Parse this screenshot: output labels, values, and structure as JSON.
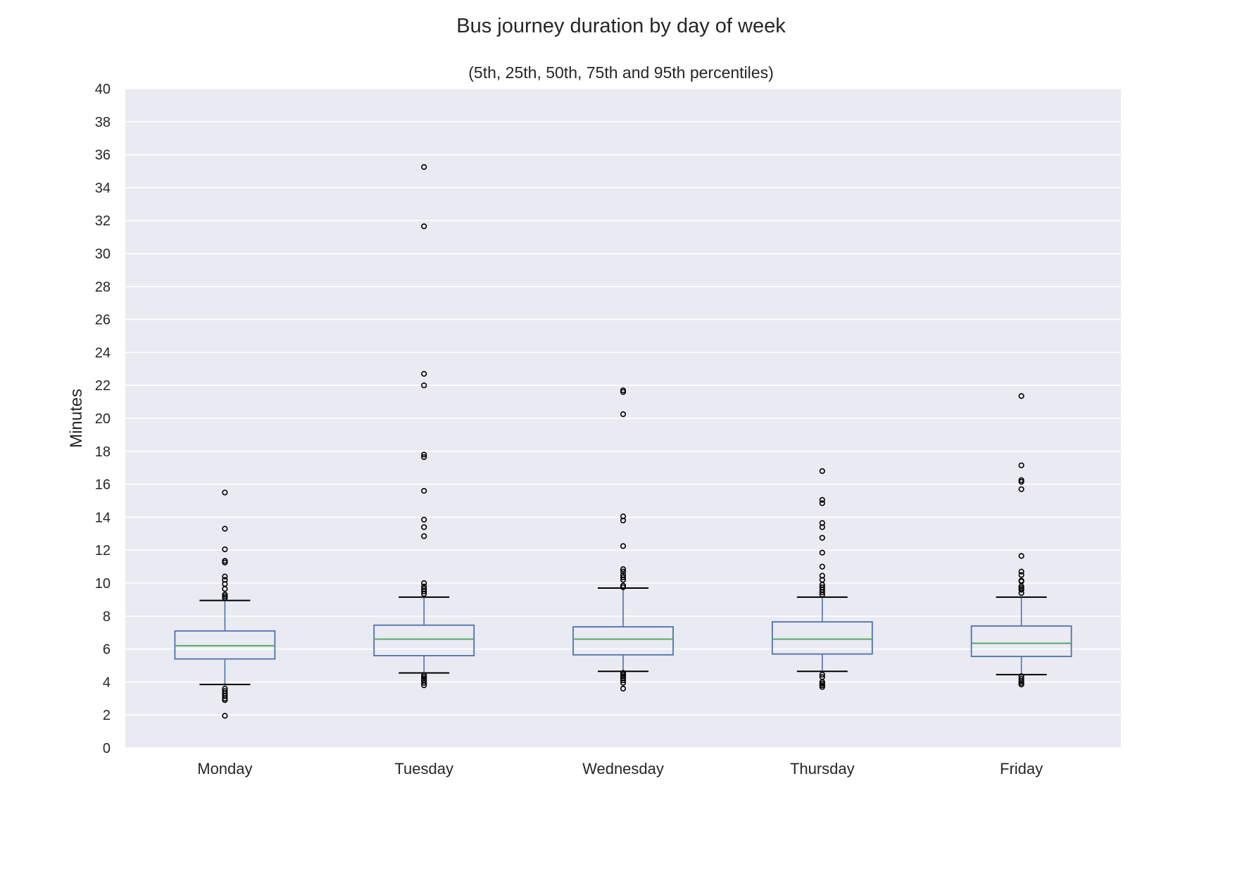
{
  "chart_data": {
    "type": "box",
    "title": "Bus journey duration by day of week",
    "subtitle": "(5th, 25th, 50th, 75th and 95th percentiles)",
    "xlabel": "",
    "ylabel": "Minutes",
    "ylim": [
      0,
      40
    ],
    "yticks": [
      0,
      2,
      4,
      6,
      8,
      10,
      12,
      14,
      16,
      18,
      20,
      22,
      24,
      26,
      28,
      30,
      32,
      34,
      36,
      38,
      40
    ],
    "grid": true,
    "legend": "none",
    "categories": [
      "Monday",
      "Tuesday",
      "Wednesday",
      "Thursday",
      "Friday"
    ],
    "boxes": [
      {
        "category": "Monday",
        "p5": 3.85,
        "p25": 5.4,
        "median": 6.2,
        "p75": 7.1,
        "p95": 8.95,
        "outliers": [
          15.5,
          13.3,
          12.05,
          11.35,
          11.25,
          10.4,
          10.2,
          9.95,
          9.65,
          9.3,
          9.2,
          9.1,
          3.6,
          3.45,
          3.3,
          3.15,
          3.0,
          2.9,
          1.95
        ]
      },
      {
        "category": "Tuesday",
        "p5": 4.55,
        "p25": 5.6,
        "median": 6.6,
        "p75": 7.45,
        "p95": 9.15,
        "outliers": [
          35.25,
          31.65,
          22.7,
          22.0,
          17.8,
          17.65,
          15.6,
          13.85,
          13.4,
          12.85,
          10.0,
          9.8,
          9.65,
          9.5,
          9.35,
          4.4,
          4.3,
          4.2,
          4.1,
          3.95,
          3.8
        ]
      },
      {
        "category": "Wednesday",
        "p5": 4.65,
        "p25": 5.65,
        "median": 6.6,
        "p75": 7.35,
        "p95": 9.7,
        "outliers": [
          21.7,
          21.6,
          20.25,
          14.05,
          13.8,
          12.25,
          10.85,
          10.7,
          10.5,
          10.35,
          10.2,
          9.85,
          9.75,
          4.55,
          4.45,
          4.35,
          4.25,
          4.1,
          3.95,
          3.6
        ]
      },
      {
        "category": "Thursday",
        "p5": 4.65,
        "p25": 5.7,
        "median": 6.6,
        "p75": 7.65,
        "p95": 9.15,
        "outliers": [
          16.8,
          15.05,
          14.85,
          13.65,
          13.4,
          12.75,
          11.85,
          11.0,
          10.45,
          10.2,
          9.9,
          9.75,
          9.6,
          9.45,
          9.3,
          4.45,
          4.3,
          4.0,
          3.9,
          3.8,
          3.7
        ]
      },
      {
        "category": "Friday",
        "p5": 4.45,
        "p25": 5.55,
        "median": 6.35,
        "p75": 7.4,
        "p95": 9.15,
        "outliers": [
          21.35,
          17.15,
          16.25,
          16.15,
          15.7,
          11.65,
          10.7,
          10.5,
          10.15,
          10.1,
          9.8,
          9.7,
          9.6,
          9.4,
          4.35,
          4.2,
          4.05,
          3.95,
          3.85
        ]
      }
    ],
    "colors": {
      "plot_background": "#eaeaf2",
      "grid": "#ffffff",
      "box": "#4c72b0",
      "median": "#55a868",
      "cap": "#000000",
      "outlier": "#000000"
    }
  }
}
